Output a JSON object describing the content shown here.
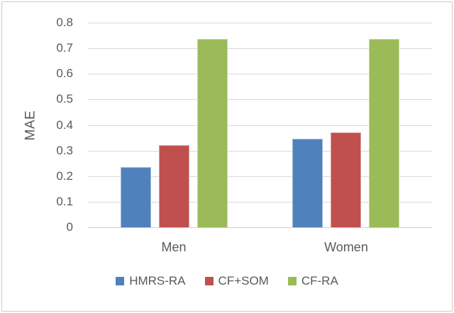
{
  "chart_data": {
    "type": "bar",
    "title": "",
    "categories": [
      "Men",
      "Women"
    ],
    "series": [
      {
        "name": "HMRS-RA",
        "color": "#4F81BD",
        "values": [
          0.235,
          0.345
        ]
      },
      {
        "name": "CF+SOM",
        "color": "#C0504D",
        "values": [
          0.32,
          0.37
        ]
      },
      {
        "name": "CF-RA",
        "color": "#9BBB59",
        "values": [
          0.735,
          0.735
        ]
      }
    ],
    "xlabel": "",
    "ylabel": "MAE",
    "ylim": [
      0,
      0.8
    ],
    "yticks": [
      "0.8",
      "0.7",
      "0.6",
      "0.5",
      "0.4",
      "0.3",
      "0.2",
      "0.1",
      "0"
    ],
    "grid": true,
    "legend_position": "bottom"
  },
  "colors": {
    "grid": "#D9D9D9",
    "axis_text": "#595959",
    "frame_border": "#C9C9C9",
    "background": "#FFFFFF"
  }
}
